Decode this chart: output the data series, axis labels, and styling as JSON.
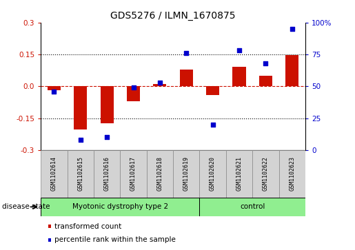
{
  "title": "GDS5276 / ILMN_1670875",
  "samples": [
    "GSM1102614",
    "GSM1102615",
    "GSM1102616",
    "GSM1102617",
    "GSM1102618",
    "GSM1102619",
    "GSM1102620",
    "GSM1102621",
    "GSM1102622",
    "GSM1102623"
  ],
  "transformed_count": [
    -0.02,
    -0.205,
    -0.175,
    -0.07,
    0.01,
    0.08,
    -0.04,
    0.09,
    0.05,
    0.145
  ],
  "percentile_rank": [
    46,
    8,
    10,
    49,
    53,
    76,
    20,
    78,
    68,
    95
  ],
  "bar_color": "#cc1100",
  "dot_color": "#0000cc",
  "ylim_left": [
    -0.3,
    0.3
  ],
  "ylim_right": [
    0,
    100
  ],
  "yticks_left": [
    -0.3,
    -0.15,
    0.0,
    0.15,
    0.3
  ],
  "yticks_right": [
    0,
    25,
    50,
    75,
    100
  ],
  "ytick_labels_right": [
    "0",
    "25",
    "50",
    "75",
    "100%"
  ],
  "dotline_y": [
    0.15,
    -0.15
  ],
  "background_color": "#ffffff",
  "grp1_label": "Myotonic dystrophy type 2",
  "grp1_samples": 6,
  "grp2_label": "control",
  "grp2_samples": 4,
  "group_color": "#90ee90",
  "label_tc": "transformed count",
  "label_pr": "percentile rank within the sample",
  "disease_state_label": "disease state"
}
